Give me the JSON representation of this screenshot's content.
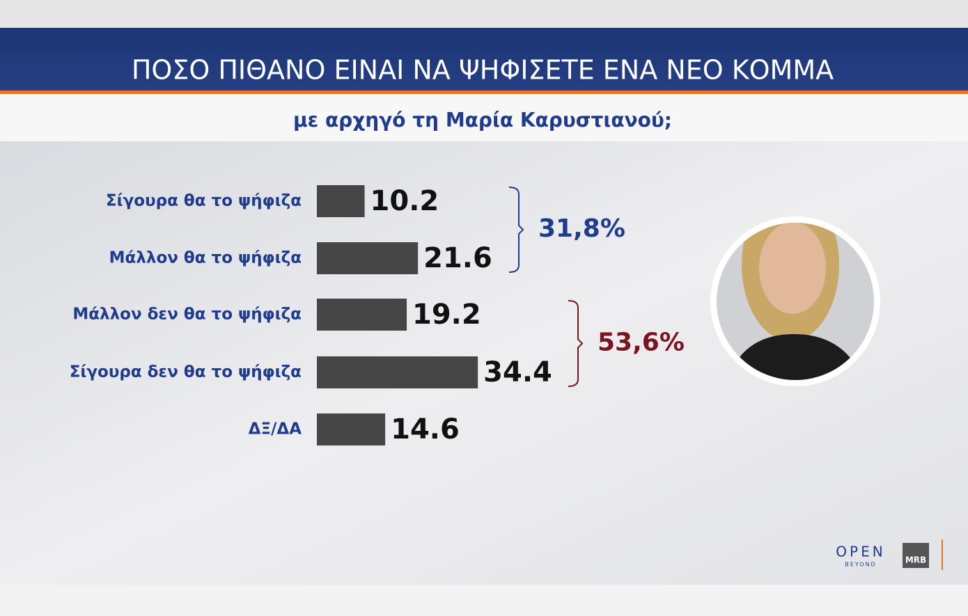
{
  "chart_data": {
    "type": "barh",
    "title": "ΠΟΣΟ ΠΙΘΑΝΟ ΕΙΝΑΙ ΝΑ ΨΗΦΙΣΕΤΕ ΕΝΑ ΝΕΟ ΚΟΜΜΑ",
    "subtitle": "με αρχηγό τη Μαρία Καρυστιανού;",
    "categories": [
      "Σίγουρα θα το ψήφιζα",
      "Μάλλον θα το ψήφιζα",
      "Μάλλον δεν θα το ψήφιζα",
      "Σίγουρα δεν θα το ψήφιζα",
      "ΔΞ/ΔΑ"
    ],
    "values": [
      10.2,
      21.6,
      19.2,
      34.4,
      14.6
    ],
    "color": "#464646",
    "annotations": [
      {
        "text": "31,8%",
        "color": "#1f3b8c"
      },
      {
        "text": "53,6%",
        "color": "#7a1420"
      }
    ]
  },
  "logos": {
    "open": "OPEN",
    "open_sub": "BEYOND",
    "mrb": "MRB"
  }
}
